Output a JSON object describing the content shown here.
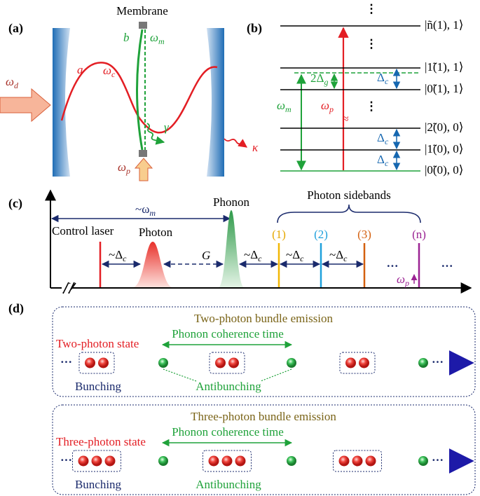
{
  "panel_a": {
    "label": "(a)",
    "membrane": "Membrane",
    "omega_d": {
      "sym": "ω",
      "sub": "d"
    },
    "mode_a": "a",
    "omega_c": {
      "sym": "ω",
      "sub": "c"
    },
    "mode_b": "b",
    "omega_m": {
      "sym": "ω",
      "sub": "m"
    },
    "gamma": "γ",
    "kappa": "κ",
    "omega_p": {
      "sym": "ω",
      "sub": "p"
    }
  },
  "panel_b": {
    "label": "(b)",
    "levels": [
      "|ñ(1), 1⟩",
      "|1̃(1), 1⟩",
      "|0̃(1), 1⟩",
      "|2̃(0), 0⟩",
      "|1̃(0), 0⟩",
      "|0̃(0), 0⟩"
    ],
    "two_delta_g": {
      "sym": "2Δ",
      "sub": "g"
    },
    "delta_c": {
      "sym": "Δ",
      "sub": "c"
    },
    "omega_m": {
      "sym": "ω",
      "sub": "m"
    },
    "omega_p": {
      "sym": "ω",
      "sub": "p"
    },
    "approx": "≈",
    "vdots": "⋮"
  },
  "panel_c": {
    "label": "(c)",
    "omega_m": {
      "sym": "~ω",
      "sub": "m"
    },
    "control_laser": "Control laser",
    "photon": "Photon",
    "phonon": "Phonon",
    "photon_sidebands": "Photon sidebands",
    "delta_c": {
      "sym": "~Δ",
      "sub": "c"
    },
    "coupling": "G",
    "sidebands": [
      "(1)",
      "(2)",
      "(3)",
      "(n)"
    ],
    "ellipsis": "···",
    "omega_p": {
      "sym": "ω",
      "sub": "p"
    }
  },
  "panel_d": {
    "label": "(d)",
    "boxes": [
      {
        "title": "Two-photon bundle emission",
        "state": "Two-photon state",
        "coherence": "Phonon coherence time",
        "bunching": "Bunching",
        "antibunching": "Antibunching",
        "ellipsis": "···"
      },
      {
        "title": "Three-photon bundle emission",
        "state": "Three-photon state",
        "coherence": "Phonon coherence time",
        "bunching": "Bunching",
        "antibunching": "Antibunching",
        "ellipsis": "···"
      }
    ]
  }
}
